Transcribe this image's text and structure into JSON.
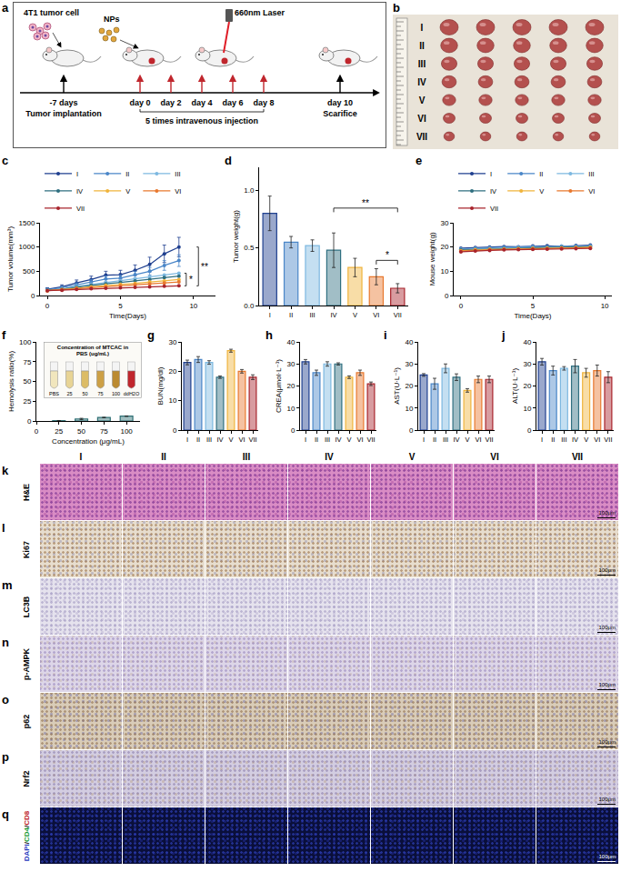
{
  "schematic": {
    "letter": "a",
    "cell_label": "4T1 tumor cell",
    "np_label": "NPs",
    "laser_label": "660nm Laser",
    "injection_note": "5 times intravenous injection",
    "timeline": [
      {
        "label": "-7 days",
        "caption": "Tumor implantation"
      },
      {
        "label": "day 0",
        "injection": true
      },
      {
        "label": "day 2",
        "injection": true
      },
      {
        "label": "day 4",
        "injection": true
      },
      {
        "label": "day 6",
        "injection": true
      },
      {
        "label": "day 8",
        "injection": true
      },
      {
        "label": "day 10",
        "caption": "Scarifice"
      }
    ]
  },
  "photo": {
    "letter": "b",
    "rows": [
      "I",
      "II",
      "III",
      "IV",
      "V",
      "VI",
      "VII"
    ],
    "counts": [
      5,
      5,
      5,
      5,
      5,
      5,
      5
    ]
  },
  "chart_data": [
    {
      "letter": "c",
      "type": "line",
      "x_label": "Time(Days)",
      "y_label": "Tumor volume(mm³)",
      "x": [
        0,
        1,
        2,
        3,
        4,
        5,
        6,
        7,
        8,
        9
      ],
      "xlim": [
        -0.5,
        11.5
      ],
      "xticks": [
        0,
        5,
        10
      ],
      "ylim": [
        0,
        1500
      ],
      "yticks": [
        0,
        500,
        1000,
        1500
      ],
      "legend": "top",
      "marker": "circle",
      "series": [
        {
          "name": "I",
          "color": "#1f3f8f",
          "values": [
            130,
            180,
            260,
            330,
            420,
            430,
            520,
            640,
            860,
            1000
          ],
          "errors": [
            30,
            40,
            60,
            70,
            80,
            90,
            110,
            150,
            180,
            200
          ]
        },
        {
          "name": "II",
          "color": "#4a86c8",
          "values": [
            120,
            160,
            220,
            280,
            340,
            360,
            430,
            500,
            620,
            720
          ],
          "errors": [
            25,
            30,
            40,
            50,
            60,
            60,
            70,
            80,
            100,
            120
          ]
        },
        {
          "name": "III",
          "color": "#7db8e0",
          "values": [
            110,
            140,
            190,
            230,
            270,
            300,
            340,
            380,
            420,
            460
          ]
        },
        {
          "name": "IV",
          "color": "#2f6f80",
          "values": [
            110,
            130,
            170,
            210,
            240,
            270,
            300,
            330,
            370,
            400
          ]
        },
        {
          "name": "V",
          "color": "#f0b43c",
          "values": [
            100,
            120,
            150,
            180,
            210,
            230,
            250,
            280,
            300,
            330
          ]
        },
        {
          "name": "VI",
          "color": "#e8782e",
          "values": [
            100,
            115,
            140,
            160,
            180,
            200,
            220,
            240,
            260,
            280
          ]
        },
        {
          "name": "VII",
          "color": "#a8242c",
          "values": [
            100,
            110,
            125,
            140,
            150,
            160,
            170,
            180,
            190,
            200
          ]
        }
      ],
      "comparisons": [
        {
          "pair": [
            "III",
            "VII"
          ],
          "text": "*"
        },
        {
          "pair": [
            "I",
            "VII"
          ],
          "text": "**"
        }
      ]
    },
    {
      "letter": "d",
      "type": "bar",
      "y_label": "Tumor weight(g)",
      "categories": [
        "I",
        "II",
        "III",
        "IV",
        "V",
        "VI",
        "VII"
      ],
      "values": [
        0.8,
        0.55,
        0.52,
        0.48,
        0.33,
        0.25,
        0.15
      ],
      "errors": [
        0.15,
        0.05,
        0.05,
        0.15,
        0.08,
        0.07,
        0.04
      ],
      "colors": [
        "#1f3f8f",
        "#4a86c8",
        "#7db8e0",
        "#2f6f80",
        "#f0b43c",
        "#e8782e",
        "#a8242c"
      ],
      "ylim": [
        0,
        1.2
      ],
      "yticks": [
        {
          "value": 0,
          "label": "0.0"
        },
        {
          "value": 0.5,
          "label": "0.5"
        },
        {
          "value": 1,
          "label": "1.0"
        }
      ],
      "comparisons": [
        {
          "pair": [
            "IV",
            "VII"
          ],
          "text": "**"
        },
        {
          "pair": [
            "VI",
            "VII"
          ],
          "text": "*"
        }
      ]
    },
    {
      "letter": "e",
      "type": "line",
      "x_label": "Time(Days)",
      "y_label": "Mouse weight(g)",
      "x": [
        0,
        1,
        2,
        3,
        4,
        5,
        6,
        7,
        8,
        9
      ],
      "xlim": [
        -0.5,
        10.5
      ],
      "xticks": [
        0,
        5,
        10
      ],
      "ylim": [
        0,
        30
      ],
      "yticks": [
        0,
        10,
        20,
        30
      ],
      "legend": "top",
      "marker": "circle",
      "series": [
        {
          "name": "I",
          "color": "#1f3f8f",
          "values": [
            19.5,
            19.8,
            20.0,
            20.2,
            20.1,
            20.4,
            20.5,
            20.3,
            20.6,
            20.8
          ]
        },
        {
          "name": "II",
          "color": "#4a86c8",
          "values": [
            19.2,
            19.5,
            19.7,
            19.9,
            20.0,
            20.2,
            20.1,
            20.3,
            20.4,
            20.5
          ]
        },
        {
          "name": "III",
          "color": "#7db8e0",
          "values": [
            19.0,
            19.3,
            19.5,
            19.6,
            19.8,
            19.9,
            20.0,
            20.2,
            20.1,
            20.3
          ]
        },
        {
          "name": "IV",
          "color": "#2f6f80",
          "values": [
            18.8,
            19.0,
            19.2,
            19.4,
            19.5,
            19.6,
            19.8,
            19.9,
            20.0,
            20.1
          ]
        },
        {
          "name": "V",
          "color": "#f0b43c",
          "values": [
            18.5,
            18.8,
            19.0,
            19.1,
            19.3,
            19.4,
            19.5,
            19.6,
            19.8,
            19.9
          ]
        },
        {
          "name": "VI",
          "color": "#e8782e",
          "values": [
            18.3,
            18.6,
            18.8,
            19.0,
            19.1,
            19.2,
            19.3,
            19.5,
            19.6,
            19.7
          ]
        },
        {
          "name": "VII",
          "color": "#a8242c",
          "values": [
            18.0,
            18.4,
            18.6,
            18.8,
            18.9,
            19.0,
            19.1,
            19.2,
            19.3,
            19.4
          ]
        }
      ]
    },
    {
      "letter": "f",
      "type": "bar",
      "x_label": "Concentration (μg/mL)",
      "y_label": "Hemolysis ratio(%)",
      "x": [
        25,
        50,
        75,
        100
      ],
      "values": [
        0.4,
        2.6,
        4.4,
        6.1
      ],
      "errors": [
        0.2,
        0.8,
        0.3,
        0.3
      ],
      "color": "#2e6f73",
      "xlim": [
        0,
        115
      ],
      "xticks": [
        0,
        25,
        50,
        75,
        100
      ],
      "ylim": [
        0,
        100
      ],
      "yticks": [
        0,
        25,
        50,
        75,
        100
      ],
      "inset": {
        "title": "Concentration of MTCAC in PBS (ug/mL)",
        "tubes": [
          "PBS",
          "25",
          "50",
          "75",
          "100",
          "ddH2O"
        ],
        "colors": [
          "#f1e6bd",
          "#e8d495",
          "#dcbc66",
          "#cda045",
          "#bb8a30",
          "#c0262d"
        ]
      }
    },
    {
      "letter": "g",
      "type": "bar",
      "y_label": "BUN(mg/dl)",
      "categories": [
        "I",
        "II",
        "III",
        "IV",
        "V",
        "VI",
        "VII"
      ],
      "values": [
        23,
        24,
        23,
        18,
        27,
        20,
        18
      ],
      "errors": [
        0.8,
        1.0,
        0.6,
        0.4,
        0.5,
        0.6,
        0.8
      ],
      "colors": [
        "#1f3f8f",
        "#4a86c8",
        "#7db8e0",
        "#2f6f80",
        "#f0b43c",
        "#e8782e",
        "#a8242c"
      ],
      "ylim": [
        0,
        30
      ],
      "yticks": [
        0,
        10,
        20,
        30
      ]
    },
    {
      "letter": "h",
      "type": "bar",
      "y_label": "CREA(μmol·L⁻¹)",
      "categories": [
        "I",
        "II",
        "III",
        "IV",
        "V",
        "VI",
        "VII"
      ],
      "values": [
        31,
        26,
        30,
        30,
        24,
        26,
        21
      ],
      "errors": [
        1.0,
        1.2,
        1.0,
        0.5,
        0.6,
        1.2,
        0.8
      ],
      "colors": [
        "#1f3f8f",
        "#4a86c8",
        "#7db8e0",
        "#2f6f80",
        "#f0b43c",
        "#e8782e",
        "#a8242c"
      ],
      "ylim": [
        0,
        40
      ],
      "yticks": [
        0,
        10,
        20,
        30,
        40
      ]
    },
    {
      "letter": "i",
      "type": "bar",
      "y_label": "AST(U·L⁻¹)",
      "categories": [
        "I",
        "II",
        "III",
        "IV",
        "V",
        "VI",
        "VII"
      ],
      "values": [
        25,
        21,
        28,
        24,
        18,
        23,
        23
      ],
      "errors": [
        0.6,
        2.5,
        2.0,
        1.5,
        0.8,
        1.5,
        1.5
      ],
      "colors": [
        "#1f3f8f",
        "#4a86c8",
        "#7db8e0",
        "#2f6f80",
        "#f0b43c",
        "#e8782e",
        "#a8242c"
      ],
      "ylim": [
        0,
        40
      ],
      "yticks": [
        0,
        10,
        20,
        30,
        40
      ]
    },
    {
      "letter": "j",
      "type": "bar",
      "y_label": "ALT(U·L⁻¹)",
      "categories": [
        "I",
        "II",
        "III",
        "IV",
        "V",
        "VI",
        "VII"
      ],
      "values": [
        31,
        27,
        28,
        29,
        26,
        27,
        24
      ],
      "errors": [
        1.5,
        2.0,
        0.8,
        3.0,
        2.0,
        2.5,
        2.5
      ],
      "colors": [
        "#1f3f8f",
        "#4a86c8",
        "#7db8e0",
        "#2f6f80",
        "#f0b43c",
        "#e8782e",
        "#a8242c"
      ],
      "ylim": [
        0,
        40
      ],
      "yticks": [
        0,
        10,
        20,
        30,
        40
      ]
    }
  ],
  "histology": {
    "columns": [
      "I",
      "II",
      "III",
      "IV",
      "V",
      "VI",
      "VII"
    ],
    "rows": [
      {
        "letter": "k",
        "label": "H&E"
      },
      {
        "letter": "l",
        "label": "Ki67"
      },
      {
        "letter": "m",
        "label": "LC3B"
      },
      {
        "letter": "n",
        "label": "p-AMPK"
      },
      {
        "letter": "o",
        "label": "p62"
      },
      {
        "letter": "p",
        "label": "Nrf2"
      },
      {
        "letter": "q",
        "label_parts": [
          {
            "text": "DAPI",
            "color": "#2a3cc0"
          },
          {
            "text": "/",
            "color": "#222222"
          },
          {
            "text": "CD4",
            "color": "#1f9e3a"
          },
          {
            "text": "/",
            "color": "#222222"
          },
          {
            "text": "CD8",
            "color": "#c0262d"
          }
        ]
      }
    ],
    "scale_bar": "100μm"
  }
}
